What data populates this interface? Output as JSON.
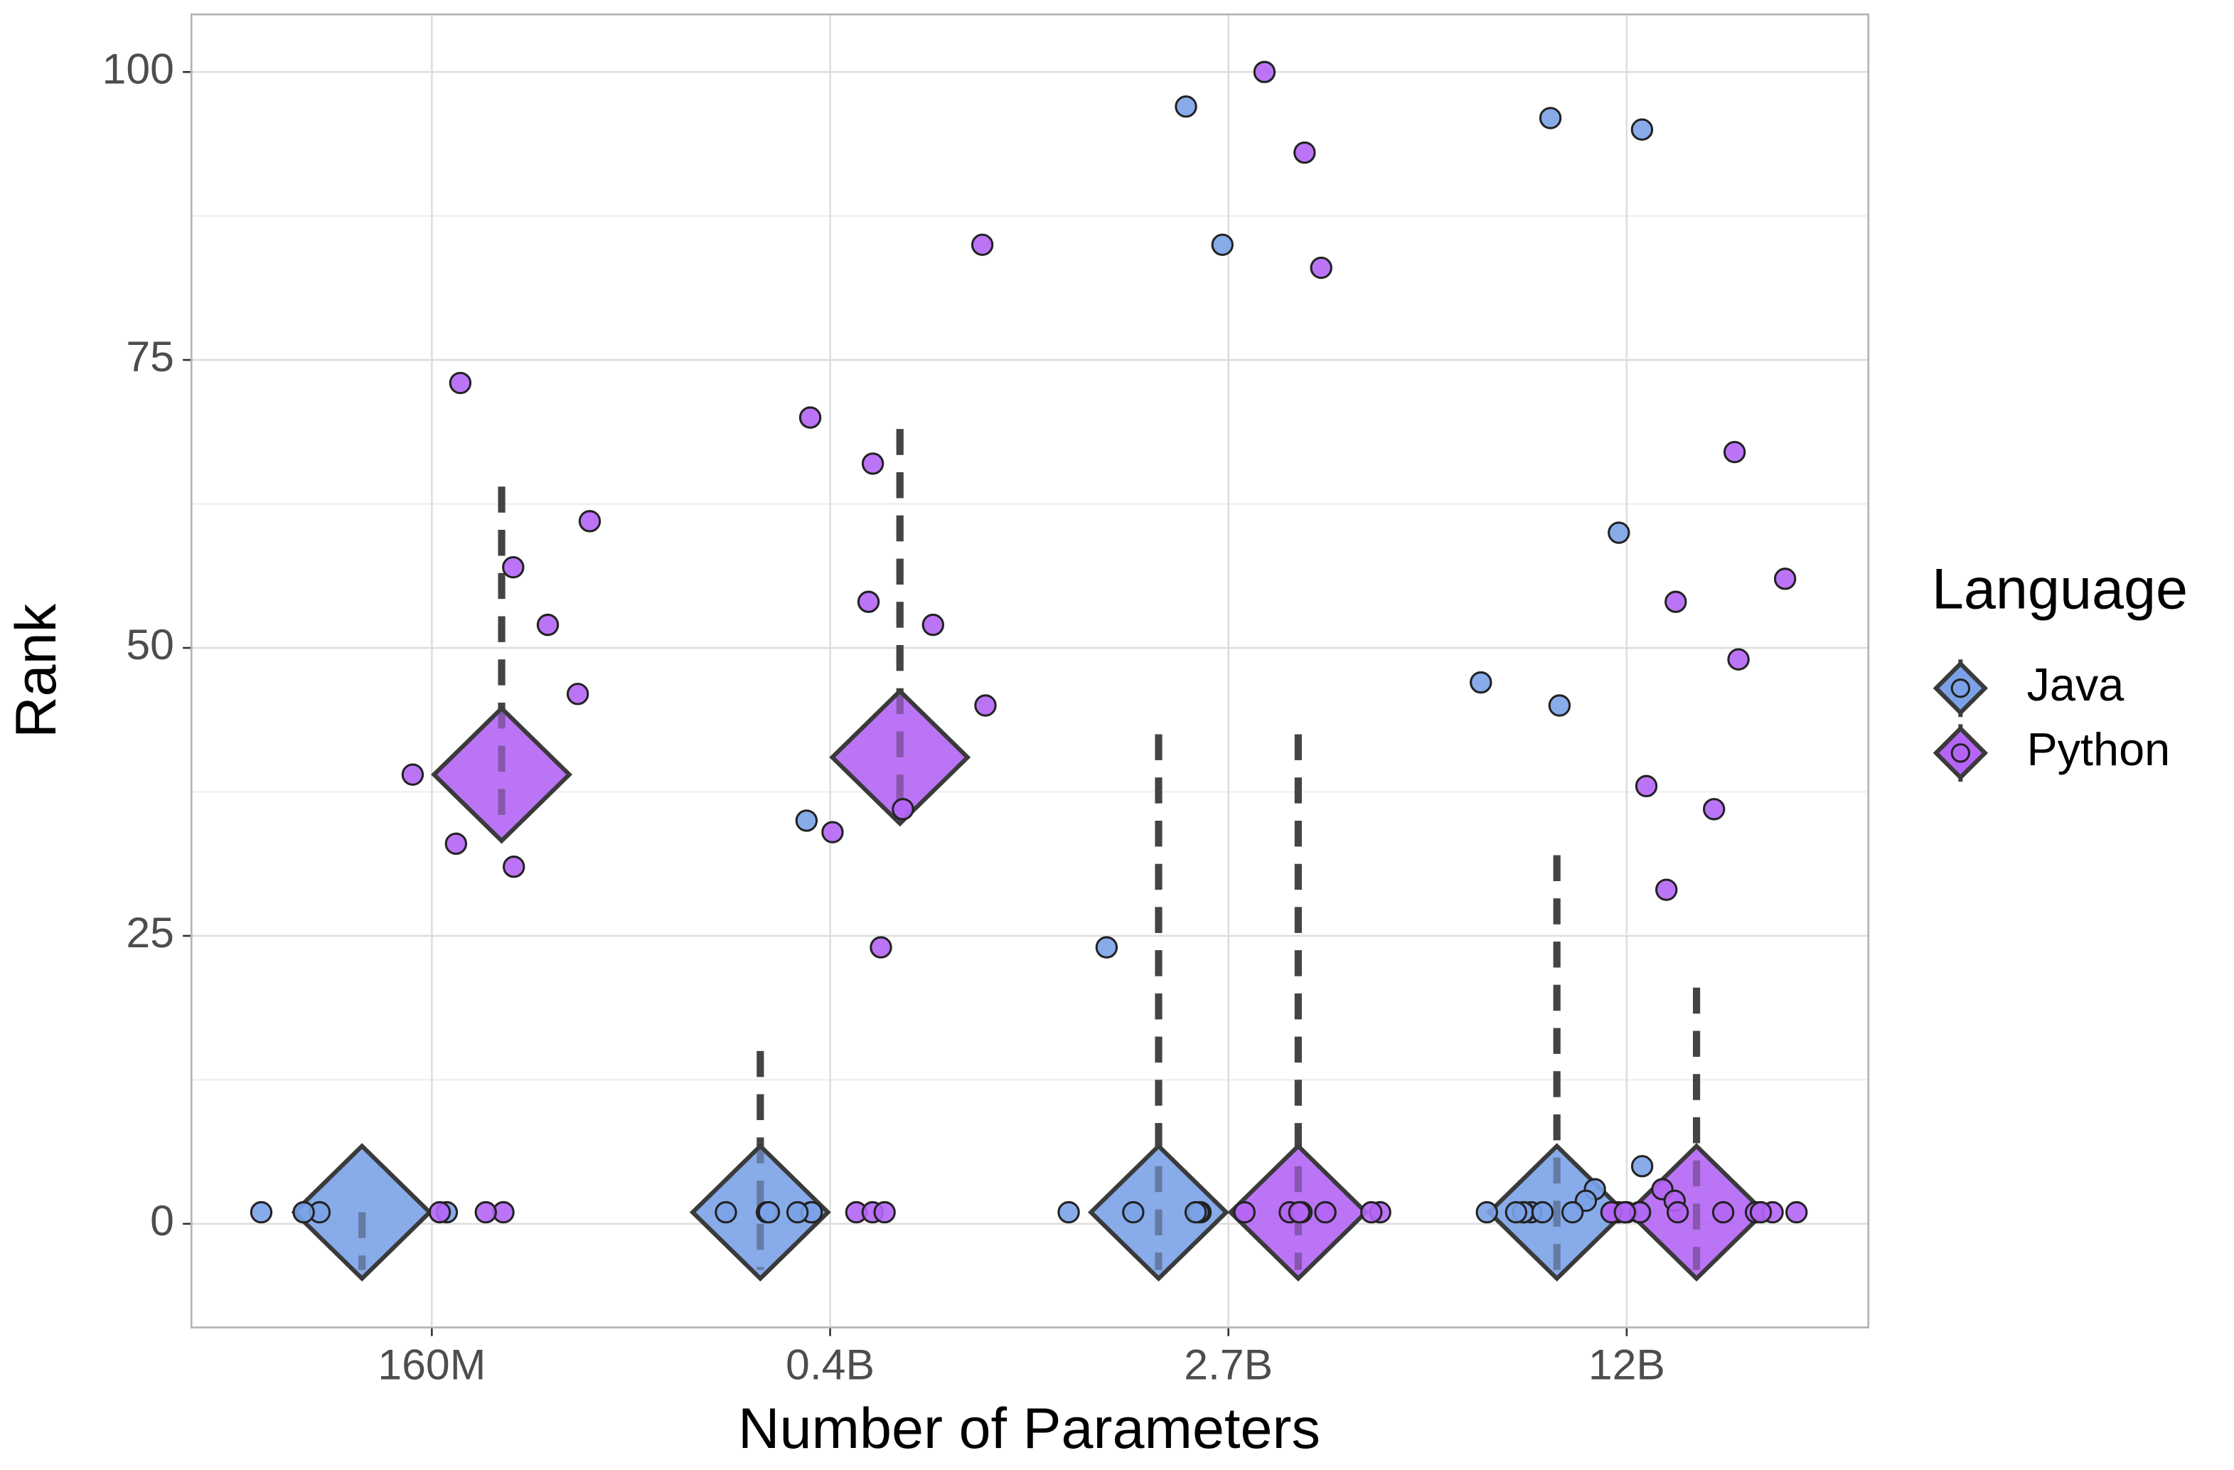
{
  "chart_data": {
    "type": "strip",
    "x_label": "Number of Parameters",
    "y_label": "Rank",
    "categories": [
      "160M",
      "0.4B",
      "2.7B",
      "12B"
    ],
    "ylim": [
      -9,
      105
    ],
    "yticks": [
      0,
      25,
      50,
      75,
      100
    ],
    "grid": true,
    "legend": {
      "title": "Language",
      "position": "right"
    },
    "series": [
      {
        "name": "Java",
        "color": "#7ba2e8",
        "values": [
          [
            1,
            1,
            1,
            1
          ],
          [
            35,
            1,
            1,
            1,
            1,
            1,
            1
          ],
          [
            97,
            85,
            24,
            1,
            1,
            1,
            1,
            1
          ],
          [
            96,
            95,
            60,
            47,
            45,
            5,
            3,
            2,
            1,
            1,
            1,
            1,
            1,
            1,
            1,
            1,
            1,
            1
          ]
        ],
        "mean": [
          1,
          1,
          1,
          1
        ],
        "lower": [
          -4,
          -4,
          -4,
          -4
        ],
        "upper": [
          1,
          15,
          42.5,
          32
        ]
      },
      {
        "name": "Python",
        "color": "#b565f5",
        "values": [
          [
            73,
            61,
            57,
            52,
            46,
            39,
            33,
            31,
            1,
            1,
            1
          ],
          [
            85,
            70,
            66,
            54,
            52,
            45,
            36,
            34,
            24,
            1,
            1,
            1
          ],
          [
            100,
            93,
            83,
            1,
            1,
            1,
            1,
            1,
            1,
            1,
            1
          ],
          [
            67,
            56,
            54,
            49,
            38,
            36,
            29,
            3,
            2,
            1,
            1,
            1,
            1,
            1,
            1,
            1,
            1,
            1,
            1,
            1,
            1
          ]
        ],
        "mean": [
          39,
          40.5,
          1,
          1
        ],
        "lower": [
          34,
          35,
          -4,
          -4
        ],
        "upper": [
          64,
          69,
          42.5,
          20.5
        ]
      }
    ]
  }
}
